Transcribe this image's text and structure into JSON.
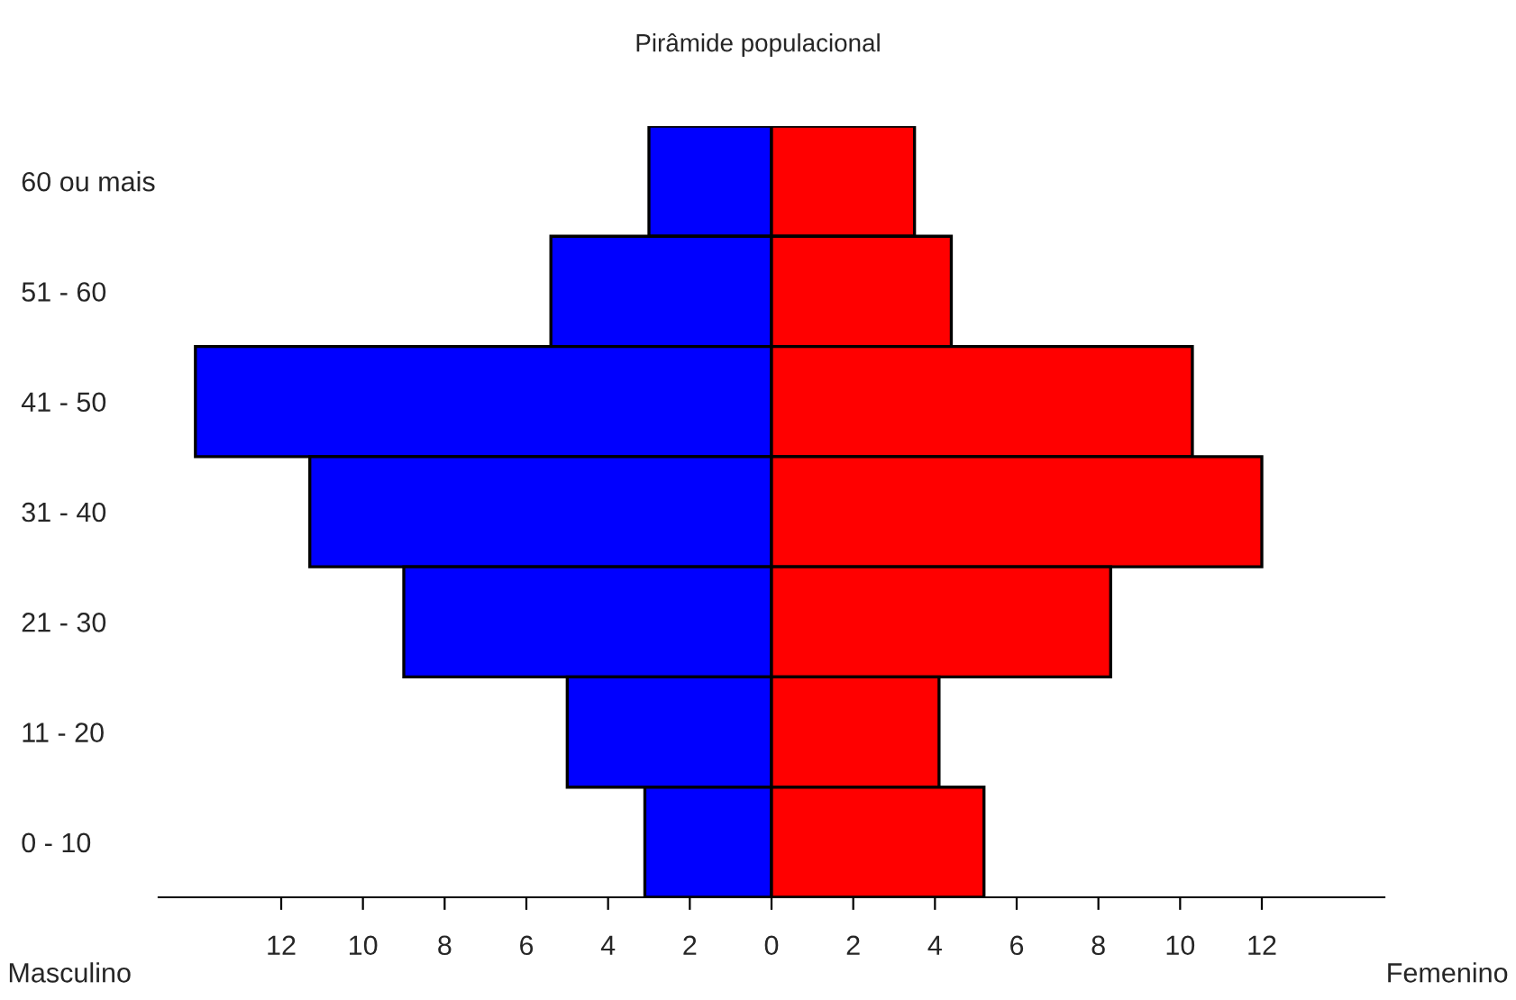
{
  "chart_data": {
    "type": "bar",
    "orientation": "horizontal",
    "title": "Pirâmide populacional",
    "categories": [
      "60 ou mais",
      "51 - 60",
      "41 - 50",
      "31 - 40",
      "21 - 30",
      "11 - 20",
      "0 - 10"
    ],
    "series": [
      {
        "color": "#0000ff",
        "values": [
          -3.0,
          -5.4,
          -14.1,
          -11.3,
          -9.0,
          -5.0,
          -3.1
        ]
      },
      {
        "color": "#ff0000",
        "values": [
          3.5,
          4.4,
          10.3,
          12.0,
          8.3,
          4.1,
          5.2
        ]
      }
    ],
    "xlim": [
      -15,
      15
    ],
    "xticks": [
      {
        "value": -12,
        "label": "12"
      },
      {
        "value": -10,
        "label": "10"
      },
      {
        "value": -8,
        "label": "8"
      },
      {
        "value": -6,
        "label": "6"
      },
      {
        "value": -4,
        "label": "4"
      },
      {
        "value": -2,
        "label": "2"
      },
      0,
      2,
      4,
      6,
      8,
      10,
      12
    ],
    "annotations": [
      "Masculino",
      "Femenino"
    ],
    "stacked": true,
    "grid": false,
    "legend": false
  }
}
